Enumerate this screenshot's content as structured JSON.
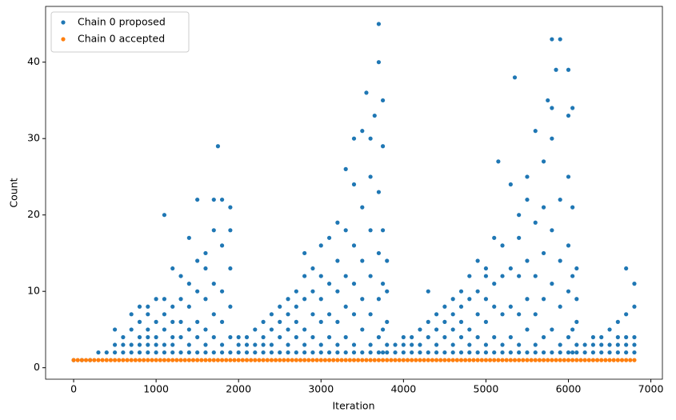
{
  "chart_data": {
    "type": "scatter",
    "xlabel": "Iteration",
    "ylabel": "Count",
    "xlim": [
      -340,
      7140
    ],
    "ylim": [
      -1.5,
      47.3
    ],
    "xticks": [
      0,
      1000,
      2000,
      3000,
      4000,
      5000,
      6000,
      7000
    ],
    "yticks": [
      0,
      10,
      20,
      30,
      40
    ],
    "legend": "upper left",
    "series": [
      {
        "name": "Chain 0 proposed",
        "color": "#1f77b4",
        "x": [
          0,
          100,
          200,
          300,
          400,
          500,
          500,
          500,
          600,
          600,
          600,
          700,
          700,
          700,
          700,
          800,
          800,
          800,
          800,
          800,
          900,
          900,
          900,
          900,
          900,
          900,
          1000,
          1000,
          1000,
          1000,
          1000,
          1100,
          1100,
          1100,
          1100,
          1100,
          1100,
          1200,
          1200,
          1200,
          1200,
          1200,
          1200,
          1300,
          1300,
          1300,
          1300,
          1300,
          1400,
          1400,
          1400,
          1400,
          1400,
          1400,
          1500,
          1500,
          1500,
          1500,
          1500,
          1500,
          1600,
          1600,
          1600,
          1600,
          1600,
          1600,
          1700,
          1700,
          1700,
          1700,
          1700,
          1700,
          1750,
          1800,
          1800,
          1800,
          1800,
          1800,
          1800,
          1900,
          1900,
          1900,
          1900,
          1900,
          1900,
          2000,
          2000,
          2000,
          2100,
          2100,
          2100,
          2200,
          2200,
          2200,
          2300,
          2300,
          2300,
          2300,
          2400,
          2400,
          2400,
          2400,
          2500,
          2500,
          2500,
          2500,
          2600,
          2600,
          2600,
          2600,
          2600,
          2700,
          2700,
          2700,
          2700,
          2700,
          2800,
          2800,
          2800,
          2800,
          2800,
          2800,
          2900,
          2900,
          2900,
          2900,
          2900,
          3000,
          3000,
          3000,
          3000,
          3000,
          3000,
          3100,
          3100,
          3100,
          3100,
          3100,
          3200,
          3200,
          3200,
          3200,
          3200,
          3200,
          3300,
          3300,
          3300,
          3300,
          3300,
          3300,
          3400,
          3400,
          3400,
          3400,
          3400,
          3400,
          3400,
          3500,
          3500,
          3500,
          3500,
          3500,
          3500,
          3550,
          3600,
          3600,
          3600,
          3600,
          3600,
          3600,
          3600,
          3650,
          3700,
          3700,
          3700,
          3700,
          3700,
          3700,
          3700,
          3750,
          3750,
          3750,
          3750,
          3750,
          3750,
          3800,
          3800,
          3800,
          3800,
          3800,
          3900,
          3900,
          4000,
          4000,
          4000,
          4100,
          4100,
          4100,
          4200,
          4200,
          4200,
          4300,
          4300,
          4300,
          4300,
          4400,
          4400,
          4400,
          4400,
          4500,
          4500,
          4500,
          4500,
          4600,
          4600,
          4600,
          4600,
          4600,
          4700,
          4700,
          4700,
          4700,
          4700,
          4800,
          4800,
          4800,
          4800,
          4800,
          4900,
          4900,
          4900,
          4900,
          4900,
          5000,
          5000,
          5000,
          5000,
          5000,
          5000,
          5100,
          5100,
          5100,
          5100,
          5100,
          5150,
          5200,
          5200,
          5200,
          5200,
          5200,
          5300,
          5300,
          5300,
          5300,
          5300,
          5350,
          5400,
          5400,
          5400,
          5400,
          5400,
          5400,
          5500,
          5500,
          5500,
          5500,
          5500,
          5500,
          5600,
          5600,
          5600,
          5600,
          5600,
          5600,
          5700,
          5700,
          5700,
          5700,
          5700,
          5700,
          5750,
          5800,
          5800,
          5800,
          5800,
          5800,
          5800,
          5800,
          5850,
          5900,
          5900,
          5900,
          5900,
          5900,
          5900,
          6000,
          6000,
          6000,
          6000,
          6000,
          6000,
          6000,
          6050,
          6050,
          6050,
          6050,
          6050,
          6100,
          6100,
          6100,
          6100,
          6100,
          6200,
          6200,
          6300,
          6300,
          6300,
          6400,
          6400,
          6400,
          6500,
          6500,
          6500,
          6600,
          6600,
          6600,
          6600,
          6700,
          6700,
          6700,
          6700,
          6700,
          6800,
          6800,
          6800,
          6800,
          6800
        ],
        "values": [
          1,
          1,
          1,
          2,
          2,
          2,
          3,
          5,
          2,
          3,
          4,
          2,
          3,
          5,
          7,
          2,
          3,
          4,
          6,
          8,
          2,
          3,
          4,
          5,
          7,
          8,
          2,
          3,
          4,
          6,
          9,
          2,
          3,
          5,
          7,
          9,
          20,
          2,
          3,
          4,
          6,
          8,
          13,
          2,
          4,
          6,
          9,
          12,
          2,
          3,
          5,
          8,
          11,
          17,
          2,
          4,
          6,
          10,
          14,
          22,
          2,
          3,
          5,
          9,
          13,
          15,
          2,
          4,
          7,
          11,
          18,
          22,
          29,
          2,
          3,
          6,
          10,
          16,
          22,
          2,
          4,
          8,
          13,
          18,
          21,
          2,
          3,
          4,
          2,
          3,
          4,
          2,
          3,
          5,
          2,
          3,
          4,
          6,
          2,
          3,
          5,
          7,
          2,
          4,
          6,
          8,
          2,
          3,
          5,
          7,
          9,
          2,
          4,
          6,
          8,
          10,
          2,
          3,
          5,
          9,
          12,
          15,
          2,
          4,
          7,
          10,
          13,
          2,
          3,
          6,
          9,
          12,
          16,
          2,
          4,
          7,
          11,
          17,
          2,
          3,
          6,
          10,
          14,
          19,
          2,
          4,
          8,
          12,
          18,
          26,
          2,
          3,
          7,
          11,
          16,
          24,
          30,
          2,
          5,
          9,
          14,
          21,
          31,
          36,
          2,
          3,
          7,
          12,
          18,
          25,
          30,
          33,
          2,
          4,
          9,
          15,
          23,
          40,
          45,
          2,
          5,
          11,
          18,
          29,
          35,
          2,
          3,
          6,
          10,
          14,
          2,
          3,
          2,
          3,
          4,
          2,
          3,
          4,
          2,
          3,
          5,
          2,
          4,
          6,
          10,
          2,
          3,
          5,
          7,
          2,
          4,
          6,
          8,
          2,
          3,
          5,
          7,
          9,
          2,
          4,
          6,
          8,
          10,
          2,
          3,
          5,
          9,
          12,
          2,
          4,
          7,
          10,
          14,
          2,
          3,
          6,
          9,
          12,
          13,
          2,
          4,
          8,
          11,
          17,
          27,
          2,
          3,
          7,
          12,
          16,
          2,
          4,
          8,
          13,
          24,
          38,
          2,
          3,
          7,
          12,
          17,
          20,
          2,
          5,
          9,
          14,
          22,
          25,
          2,
          3,
          7,
          12,
          19,
          31,
          2,
          4,
          9,
          15,
          21,
          27,
          35,
          2,
          5,
          11,
          18,
          30,
          34,
          43,
          39,
          2,
          3,
          8,
          14,
          22,
          43,
          2,
          4,
          10,
          16,
          25,
          33,
          39,
          2,
          5,
          12,
          21,
          34,
          2,
          3,
          6,
          9,
          13,
          2,
          3,
          2,
          3,
          4,
          2,
          3,
          4,
          2,
          3,
          5,
          2,
          3,
          4,
          6,
          2,
          3,
          4,
          7,
          13,
          2,
          3,
          4,
          8,
          11
        ]
      },
      {
        "name": "Chain 0 accepted",
        "color": "#ff7f0e",
        "x": [
          0,
          50,
          100,
          150,
          200,
          250,
          300,
          350,
          400,
          450,
          500,
          550,
          600,
          650,
          700,
          750,
          800,
          850,
          900,
          950,
          1000,
          1050,
          1100,
          1150,
          1200,
          1250,
          1300,
          1350,
          1400,
          1450,
          1500,
          1550,
          1600,
          1650,
          1700,
          1750,
          1800,
          1850,
          1900,
          1950,
          2000,
          2050,
          2100,
          2150,
          2200,
          2250,
          2300,
          2350,
          2400,
          2450,
          2500,
          2550,
          2600,
          2650,
          2700,
          2750,
          2800,
          2850,
          2900,
          2950,
          3000,
          3050,
          3100,
          3150,
          3200,
          3250,
          3300,
          3350,
          3400,
          3450,
          3500,
          3550,
          3600,
          3650,
          3700,
          3750,
          3800,
          3850,
          3900,
          3950,
          4000,
          4050,
          4100,
          4150,
          4200,
          4250,
          4300,
          4350,
          4400,
          4450,
          4500,
          4550,
          4600,
          4650,
          4700,
          4750,
          4800,
          4850,
          4900,
          4950,
          5000,
          5050,
          5100,
          5150,
          5200,
          5250,
          5300,
          5350,
          5400,
          5450,
          5500,
          5550,
          5600,
          5650,
          5700,
          5750,
          5800,
          5850,
          5900,
          5950,
          6000,
          6050,
          6100,
          6150,
          6200,
          6250,
          6300,
          6350,
          6400,
          6450,
          6500,
          6550,
          6600,
          6650,
          6700,
          6750,
          6800
        ],
        "values": [
          1,
          1,
          1,
          1,
          1,
          1,
          1,
          1,
          1,
          1,
          1,
          1,
          1,
          1,
          1,
          1,
          1,
          1,
          1,
          1,
          1,
          1,
          1,
          1,
          1,
          1,
          1,
          1,
          1,
          1,
          1,
          1,
          1,
          1,
          1,
          1,
          1,
          1,
          1,
          1,
          1,
          1,
          1,
          1,
          1,
          1,
          1,
          1,
          1,
          1,
          1,
          1,
          1,
          1,
          1,
          1,
          1,
          1,
          1,
          1,
          1,
          1,
          1,
          1,
          1,
          1,
          1,
          1,
          1,
          1,
          1,
          1,
          1,
          1,
          1,
          1,
          1,
          1,
          1,
          1,
          1,
          1,
          1,
          1,
          1,
          1,
          1,
          1,
          1,
          1,
          1,
          1,
          1,
          1,
          1,
          1,
          1,
          1,
          1,
          1,
          1,
          1,
          1,
          1,
          1,
          1,
          1,
          1,
          1,
          1,
          1,
          1,
          1,
          1,
          1,
          1,
          1,
          1,
          1,
          1,
          1,
          1,
          1,
          1,
          1,
          1,
          1,
          1,
          1,
          1,
          1,
          1,
          1,
          1,
          1,
          1,
          1
        ]
      }
    ]
  }
}
